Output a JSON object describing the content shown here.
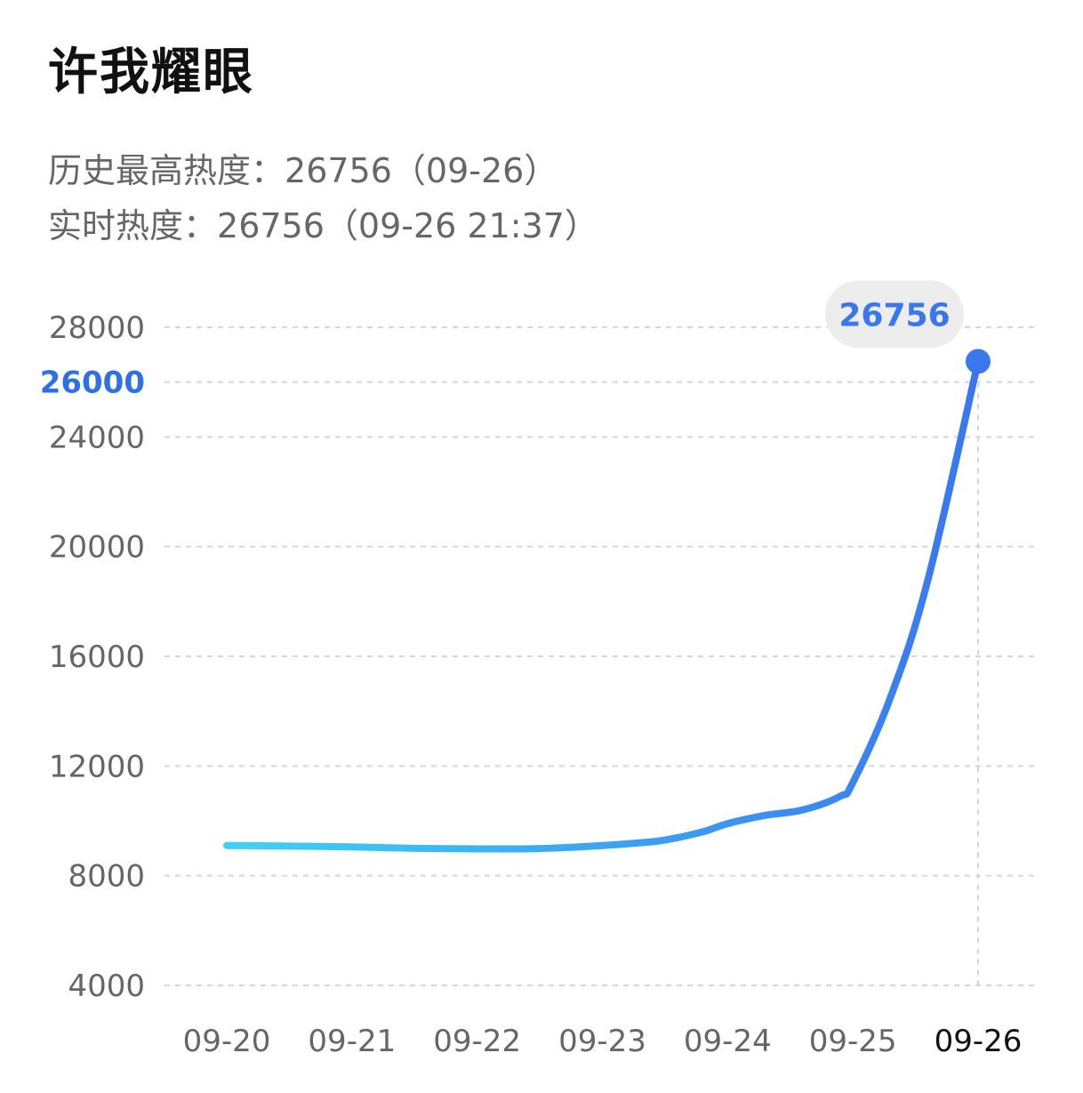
{
  "title": "许我耀眼",
  "stats": {
    "peak_label": "历史最高热度：",
    "peak_value": "26756（09-26）",
    "realtime_label": "实时热度：",
    "realtime_value": "26756（09-26 21:37）"
  },
  "colors": {
    "line_start": "#3dd3f7",
    "line_end": "#3a76ee",
    "highlight": "#2f6fe8",
    "grid": "#d6d6d6",
    "bubble_bg": "#ededed"
  },
  "chart_data": {
    "type": "line",
    "x_ticks": [
      "09-20",
      "09-21",
      "09-22",
      "09-23",
      "09-24",
      "09-25",
      "09-26"
    ],
    "current_x_tick": "09-26",
    "y_ticks": [
      4000,
      8000,
      12000,
      16000,
      20000,
      24000,
      26000,
      28000
    ],
    "highlight_y_tick": 26000,
    "ylim": [
      4000,
      28000
    ],
    "series": [
      {
        "x": [
          0,
          0.5,
          1,
          1.5,
          2,
          2.5,
          3,
          3.3,
          3.5,
          3.8,
          4,
          4.3,
          4.6,
          4.9,
          5,
          5.3,
          5.6,
          6
        ],
        "values": [
          9100,
          9080,
          9050,
          9000,
          8980,
          8990,
          9100,
          9200,
          9300,
          9600,
          9900,
          10200,
          10400,
          10900,
          11400,
          14500,
          18800,
          26756
        ]
      }
    ],
    "peak_label": "26756",
    "grid": true,
    "legend": "none"
  }
}
